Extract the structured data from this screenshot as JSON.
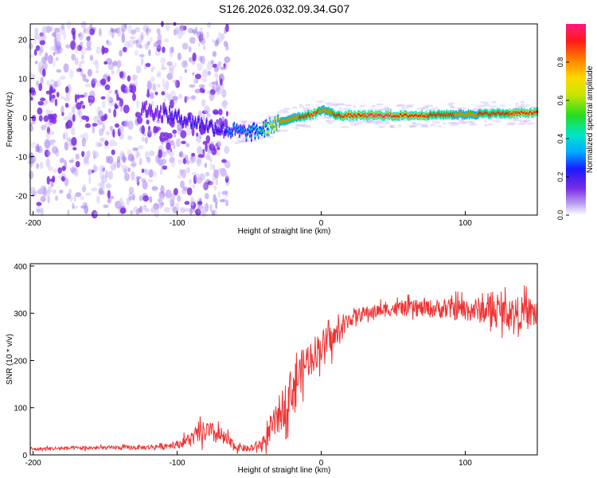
{
  "figure": {
    "title": "S126.2026.032.09.34.G07"
  },
  "colors": {
    "snr_line": "#ee3333",
    "track_high": "#ff2222",
    "track_mid": "#22dd55",
    "scatter_low": "#cfc0f7",
    "scatter_mid": "#a67ef0",
    "scatter_high": "#7b2be3"
  },
  "chart_data": [
    {
      "type": "heatmap",
      "title": "S126.2026.032.09.34.G07",
      "xlabel": "Height of straight line (km)",
      "ylabel": "Frequency (Hz)",
      "xlim": [
        -202,
        150
      ],
      "ylim": [
        -25,
        24
      ],
      "xticks": [
        -200,
        -100,
        0,
        100
      ],
      "yticks": [
        -20,
        -10,
        0,
        10,
        20
      ],
      "colorbar": {
        "label": "Normalized spectral amplitude",
        "range": [
          0,
          1
        ],
        "ticks": [
          "0.0",
          "0.2",
          "0.4",
          "0.6",
          "0.8"
        ],
        "tick_values": [
          0.0,
          0.2,
          0.4,
          0.6,
          0.8
        ]
      },
      "ridge": {
        "height_km": [
          -125,
          -110,
          -100,
          -90,
          -80,
          -70,
          -60,
          -50,
          -40,
          -35,
          -30,
          -20,
          -10,
          -5,
          0,
          5,
          10,
          20,
          40,
          60,
          80,
          100,
          120,
          150
        ],
        "frequency_hz": [
          2,
          1,
          0,
          -1,
          -2,
          -3,
          -3.5,
          -4,
          -3,
          -2,
          -1.5,
          0,
          0.5,
          1,
          2,
          1.5,
          0.5,
          0.5,
          0.5,
          0.5,
          0.7,
          0.8,
          1,
          1.2
        ],
        "amplitude": [
          0.12,
          0.14,
          0.2,
          0.18,
          0.16,
          0.2,
          0.3,
          0.35,
          0.45,
          0.7,
          0.75,
          0.8,
          0.85,
          0.9,
          0.75,
          0.8,
          0.85,
          0.9,
          0.92,
          0.9,
          0.85,
          0.8,
          0.85,
          0.9
        ]
      },
      "scatter_region_km": [
        -202,
        -65
      ]
    },
    {
      "type": "line",
      "xlabel": "Height of straight line (km)",
      "ylabel": "SNR (10 * v/v)",
      "xlim": [
        -202,
        150
      ],
      "ylim": [
        0,
        405
      ],
      "xticks": [
        -200,
        -100,
        0,
        100
      ],
      "yticks": [
        0,
        100,
        200,
        300,
        400
      ],
      "series": [
        {
          "name": "SNR",
          "x": [
            -202,
            -180,
            -150,
            -120,
            -100,
            -90,
            -80,
            -70,
            -60,
            -50,
            -40,
            -30,
            -20,
            -10,
            0,
            10,
            20,
            30,
            50,
            80,
            100,
            120,
            140,
            150
          ],
          "y": [
            12,
            14,
            15,
            16,
            22,
            35,
            50,
            40,
            18,
            12,
            25,
            80,
            140,
            200,
            230,
            250,
            290,
            300,
            310,
            310,
            308,
            305,
            300,
            300
          ],
          "noise": [
            4,
            4,
            4,
            5,
            8,
            15,
            25,
            20,
            10,
            6,
            15,
            40,
            50,
            40,
            35,
            30,
            18,
            15,
            15,
            20,
            25,
            30,
            35,
            35
          ]
        }
      ]
    }
  ]
}
